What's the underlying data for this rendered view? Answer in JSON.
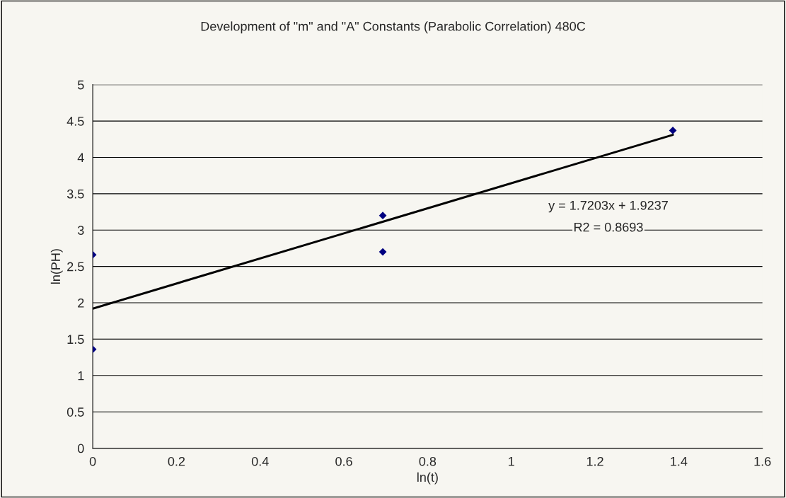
{
  "chart_data": {
    "type": "scatter",
    "title": "Development of \"m\" and \"A\" Constants (Parabolic Correlation) 480C",
    "xlabel": "ln(t)",
    "ylabel": "ln(PH)",
    "series": [
      {
        "color": "#000080",
        "x": [
          0,
          0,
          0.693,
          0.693,
          1.386
        ],
        "values": [
          2.66,
          1.36,
          3.2,
          2.7,
          4.37
        ],
        "marker": "diamond"
      },
      {
        "type": "line",
        "color": "#000000",
        "x": [
          0,
          1.386
        ],
        "values": [
          1.92,
          4.31
        ],
        "marker": "none",
        "line_style": "solid"
      }
    ],
    "annotations": [
      "y = 1.7203x + 1.9237",
      "R2 = 0.8693"
    ],
    "xlim": [
      0,
      1.6
    ],
    "xticks": [
      0,
      0.2,
      0.4,
      0.6,
      0.8,
      1,
      1.2,
      1.4,
      1.6
    ],
    "ylim": [
      0,
      5
    ],
    "yticks": [
      0,
      0.5,
      1,
      1.5,
      2,
      2.5,
      3,
      3.5,
      4,
      4.5,
      5
    ],
    "grid": "y",
    "legend": false
  }
}
